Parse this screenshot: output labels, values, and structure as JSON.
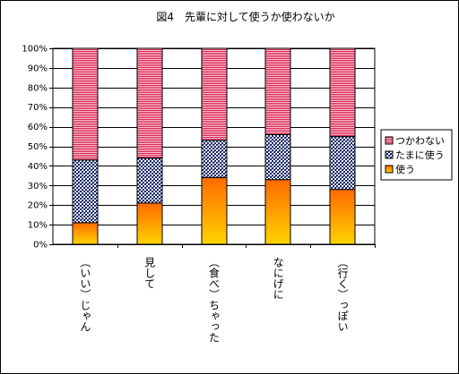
{
  "chart_data": {
    "type": "bar",
    "stacked": true,
    "percent": true,
    "title": "図4　先輩に対して使うか使わないか",
    "categories": [
      "（いい）じゃん",
      "見して",
      "（食べ）ちゃった",
      "なにげに",
      "（行く）っぽい"
    ],
    "series": [
      {
        "name": "使う",
        "values": [
          11,
          21,
          34,
          33,
          28
        ],
        "fill": "gradient-orange"
      },
      {
        "name": "たまに使う",
        "values": [
          32,
          23,
          19,
          23,
          27
        ],
        "fill": "pattern-checker-navy"
      },
      {
        "name": "つかわない",
        "values": [
          57,
          56,
          47,
          44,
          45
        ],
        "fill": "pattern-hstripe-red"
      }
    ],
    "legend_order": [
      "つかわない",
      "たまに使う",
      "使う"
    ],
    "yticks": [
      "0%",
      "10%",
      "20%",
      "30%",
      "40%",
      "50%",
      "60%",
      "70%",
      "80%",
      "90%",
      "100%"
    ],
    "ylim": [
      0,
      100
    ],
    "grid": true,
    "legend_position": "right",
    "colors": {
      "bar_stripe_red": "#dd1f4e",
      "bar_checker_navy": "#1a2a6c",
      "bar_orange_top": "#ff6a00",
      "bar_orange_bottom": "#ffd400",
      "plot_bg": "#ffffff"
    }
  }
}
